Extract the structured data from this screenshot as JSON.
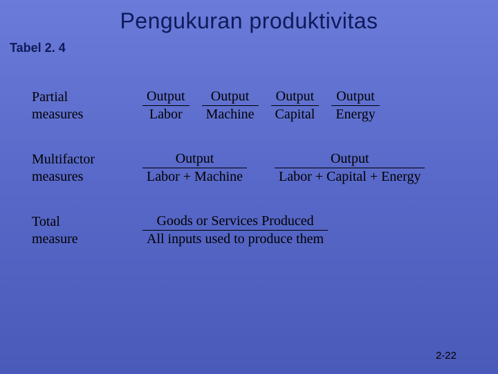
{
  "title": {
    "text": "Pengukuran produktivitas",
    "fontsize": 32,
    "color": "#0f1a5a"
  },
  "table_label": {
    "text": "Tabel 2. 4",
    "fontsize": 18,
    "color": "#0f1a5a"
  },
  "body": {
    "text_color": "#000000",
    "fontsize": 20
  },
  "partial": {
    "label_l1": "Partial",
    "label_l2": "measures",
    "items": [
      {
        "num": "Output",
        "den": "Labor"
      },
      {
        "num": "Output",
        "den": "Machine"
      },
      {
        "num": "Output",
        "den": "Capital"
      },
      {
        "num": "Output",
        "den": "Energy"
      }
    ]
  },
  "multifactor": {
    "label_l1": "Multifactor",
    "label_l2": "measures",
    "items": [
      {
        "num": "Output",
        "den": "Labor + Machine"
      },
      {
        "num": "Output",
        "den": "Labor + Capital + Energy"
      }
    ]
  },
  "total": {
    "label_l1": "Total",
    "label_l2": "measure",
    "item": {
      "num": "Goods or Services Produced",
      "den": "All inputs used to produce them"
    }
  },
  "page_number": {
    "text": "2-22",
    "fontsize": 15,
    "color": "#000000"
  }
}
